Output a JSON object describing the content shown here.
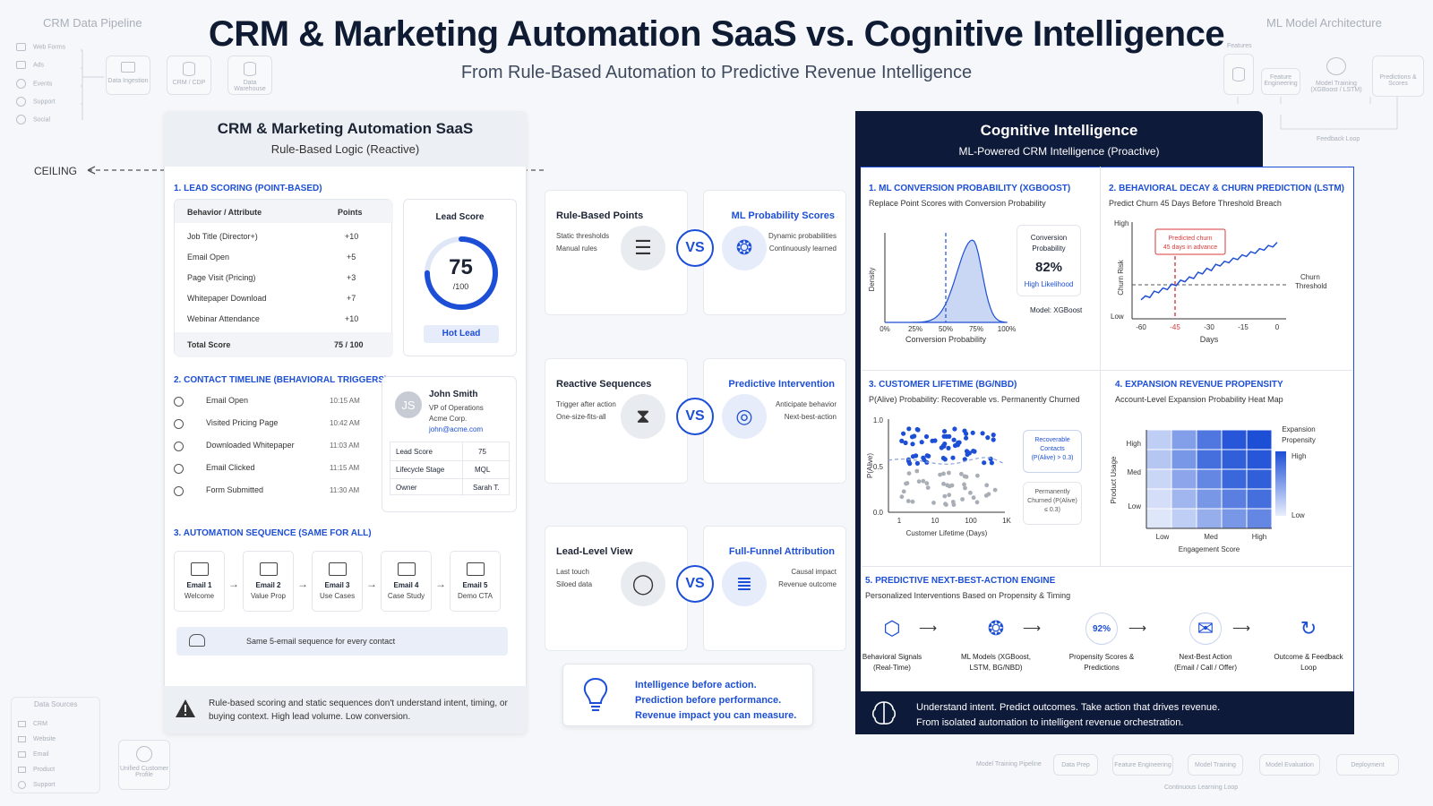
{
  "header": {
    "title": "CRM & Marketing Automation SaaS vs. Cognitive Intelligence",
    "subtitle": "From Rule-Based Automation to Predictive Revenue Intelligence"
  },
  "bg_left_top": {
    "title": "CRM Data Pipeline",
    "sources": [
      "Web Forms",
      "Ads",
      "Events",
      "Support",
      "Social"
    ],
    "steps": [
      "Data Ingestion",
      "CRM / CDP",
      "Data Warehouse"
    ]
  },
  "bg_right_top": {
    "title": "ML Model Architecture",
    "features": "Features",
    "steps": [
      "Feature Engineering",
      "Model Training (XGBoost / LSTM)",
      "Predictions & Scores"
    ],
    "loop": "Feedback Loop"
  },
  "bg_left_bottom": {
    "title": "Data Sources",
    "items": [
      "CRM",
      "Website",
      "Email",
      "Product",
      "Support"
    ],
    "profile": "Unified Customer Profile"
  },
  "bg_right_bottom": {
    "label": "Model Training Pipeline",
    "steps": [
      "Data Prep",
      "Feature Engineering",
      "Model Training",
      "Model Evaluation",
      "Deployment"
    ],
    "loop": "Continuous Learning Loop"
  },
  "ceiling": "CEILING",
  "left_panel": {
    "title": "CRM & Marketing Automation SaaS",
    "subtitle": "Rule-Based Logic (Reactive)",
    "lead_scoring": {
      "heading": "1. LEAD SCORING (POINT-BASED)",
      "col_behavior": "Behavior / Attribute",
      "col_points": "Points",
      "rows": [
        {
          "label": "Job Title (Director+)",
          "points": "+10"
        },
        {
          "label": "Email Open",
          "points": "+5"
        },
        {
          "label": "Page Visit (Pricing)",
          "points": "+3"
        },
        {
          "label": "Whitepaper Download",
          "points": "+7"
        },
        {
          "label": "Webinar Attendance",
          "points": "+10"
        }
      ],
      "total_label": "Total Score",
      "total_value": "75 / 100",
      "gauge_title": "Lead Score",
      "gauge_value": "75",
      "gauge_max": "/100",
      "gauge_fraction": 0.75,
      "badge": "Hot Lead"
    },
    "timeline": {
      "heading": "2. CONTACT TIMELINE (BEHAVIORAL TRIGGERS)",
      "events": [
        {
          "label": "Email Open",
          "time": "10:15 AM"
        },
        {
          "label": "Visited Pricing Page",
          "time": "10:42 AM"
        },
        {
          "label": "Downloaded Whitepaper",
          "time": "11:03 AM"
        },
        {
          "label": "Email Clicked",
          "time": "11:15 AM"
        },
        {
          "label": "Form Submitted",
          "time": "11:30 AM"
        }
      ],
      "contact": {
        "initials": "JS",
        "name": "John Smith",
        "role": "VP of Operations",
        "company": "Acme Corp.",
        "email": "john@acme.com",
        "fields": [
          {
            "k": "Lead Score",
            "v": "75"
          },
          {
            "k": "Lifecycle Stage",
            "v": "MQL"
          },
          {
            "k": "Owner",
            "v": "Sarah T."
          }
        ]
      }
    },
    "sequence": {
      "heading": "3. AUTOMATION SEQUENCE (SAME FOR ALL)",
      "emails": [
        {
          "name": "Email 1",
          "desc": "Welcome"
        },
        {
          "name": "Email 2",
          "desc": "Value Prop"
        },
        {
          "name": "Email 3",
          "desc": "Use Cases"
        },
        {
          "name": "Email 4",
          "desc": "Case Study"
        },
        {
          "name": "Email 5",
          "desc": "Demo CTA"
        }
      ],
      "note": "Same 5-email sequence for every contact"
    },
    "warning": "Rule-based scoring and static sequences don't understand intent, timing, or buying context. High lead volume. Low conversion."
  },
  "middle": {
    "vs": "VS",
    "rows": [
      {
        "left_title": "Rule-Based Points",
        "left_lines": [
          "Static thresholds",
          "Manual rules"
        ],
        "right_title": "ML Probability Scores",
        "right_lines": [
          "Dynamic probabilities",
          "Continuously learned"
        ]
      },
      {
        "left_title": "Reactive Sequences",
        "left_lines": [
          "Trigger after action",
          "One-size-fits-all"
        ],
        "right_title": "Predictive Intervention",
        "right_lines": [
          "Anticipate behavior",
          "Next-best-action"
        ]
      },
      {
        "left_title": "Lead-Level View",
        "left_lines": [
          "Last touch",
          "Siloed data"
        ],
        "right_title": "Full-Funnel Attribution",
        "right_lines": [
          "Causal impact",
          "Revenue outcome"
        ]
      }
    ],
    "callout": [
      "Intelligence before action.",
      "Prediction before performance.",
      "Revenue impact you can measure."
    ]
  },
  "right_panel": {
    "title": "Cognitive Intelligence",
    "subtitle": "ML-Powered CRM Intelligence (Proactive)",
    "s1": {
      "heading": "1. ML CONVERSION PROBABILITY (XGBOOST)",
      "sub": "Replace Point Scores with Conversion Probability",
      "ylabel": "Density",
      "xlabel": "Conversion Probability",
      "ticks": [
        "0%",
        "25%",
        "50%",
        "75%",
        "100%"
      ],
      "box_title": "Conversion Probability",
      "box_value": "82%",
      "box_label": "High Likelihood",
      "model": "Model: XGBoost"
    },
    "s2": {
      "heading": "2. BEHAVIORAL DECAY & CHURN PREDICTION (LSTM)",
      "sub": "Predict Churn 45 Days Before Threshold Breach",
      "ylabel": "Churn Risk",
      "y_high": "High",
      "y_low": "Low",
      "xlabel": "Days",
      "ticks": [
        "-60",
        "-45",
        "-30",
        "-15",
        "0"
      ],
      "callout": "Predicted churn 45 days in advance",
      "threshold": "Churn Threshold"
    },
    "s3": {
      "heading": "3. CUSTOMER LIFETIME (BG/NBD)",
      "sub": "P(Alive) Probability: Recoverable vs. Permanently Churned",
      "ylabel": "P(Alive)",
      "yticks": [
        "1.0",
        "0.5",
        "0.0"
      ],
      "xlabel": "Customer Lifetime (Days)",
      "xticks": [
        "1",
        "10",
        "100",
        "1K"
      ],
      "legend_recoverable": "Recoverable Contacts (P(Alive) > 0.3)",
      "legend_churned": "Permanently Churned (P(Alive) ≤ 0.3)"
    },
    "s4": {
      "heading": "4. EXPANSION REVENUE PROPENSITY",
      "sub": "Account-Level Expansion Probability Heat Map",
      "ylabel": "Product Usage",
      "yticks": [
        "High",
        "Med",
        "Low"
      ],
      "xlabel": "Engagement Score",
      "xticks": [
        "Low",
        "Med",
        "High"
      ],
      "legend_title": "Expansion Propensity",
      "legend_high": "High",
      "legend_low": "Low"
    },
    "s5": {
      "heading": "5. PREDICTIVE NEXT-BEST-ACTION ENGINE",
      "sub": "Personalized Interventions Based on Propensity & Timing",
      "badge": "92%",
      "steps": [
        {
          "icon": "cube-icon",
          "label": "Behavioral Signals (Real-Time)"
        },
        {
          "icon": "brain-icon",
          "label": "ML Models (XGBoost, LSTM, BG/NBD)"
        },
        {
          "icon": "percent-icon",
          "label": "Propensity Scores & Predictions"
        },
        {
          "icon": "mail-icon",
          "label": "Next-Best Action (Email / Call / Offer)"
        },
        {
          "icon": "loop-icon",
          "label": "Outcome & Feedback Loop"
        }
      ]
    },
    "footer": [
      "Understand intent. Predict outcomes. Take action that drives revenue.",
      "From isolated automation to intelligent revenue orchestration."
    ]
  },
  "colors": {
    "accent": "#1d4fd6",
    "navy": "#0e1a3a",
    "alert": "#d93a3a"
  }
}
